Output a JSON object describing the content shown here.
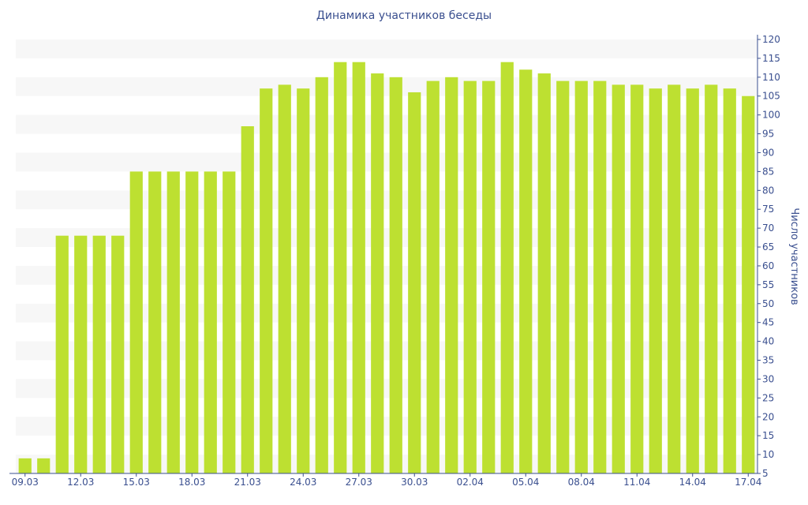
{
  "chart_data": {
    "type": "bar",
    "title": "Динамика участников беседы",
    "ylabel": "Число участников",
    "xlabel": "",
    "ylim": [
      5,
      120
    ],
    "y_ticks": [
      5,
      10,
      15,
      20,
      25,
      30,
      35,
      40,
      45,
      50,
      55,
      60,
      65,
      70,
      75,
      80,
      85,
      90,
      95,
      100,
      105,
      110,
      115,
      120
    ],
    "y_axis_side": "right",
    "grid": "alternating horizontal bands",
    "categories": [
      "09.03",
      "10.03",
      "11.03",
      "12.03",
      "13.03",
      "14.03",
      "15.03",
      "16.03",
      "17.03",
      "18.03",
      "19.03",
      "20.03",
      "21.03",
      "22.03",
      "23.03",
      "24.03",
      "25.03",
      "26.03",
      "27.03",
      "28.03",
      "29.03",
      "30.03",
      "31.03",
      "01.04",
      "02.04",
      "03.04",
      "04.04",
      "05.04",
      "06.04",
      "07.04",
      "08.04",
      "09.04",
      "10.04",
      "11.04",
      "12.04",
      "13.04",
      "14.04",
      "15.04",
      "16.04",
      "17.04"
    ],
    "x_tick_labels": [
      "09.03",
      "12.03",
      "15.03",
      "18.03",
      "21.03",
      "24.03",
      "27.03",
      "30.03",
      "02.04",
      "05.04",
      "08.04",
      "11.04",
      "14.04",
      "17.04"
    ],
    "values": [
      9,
      9,
      68,
      68,
      68,
      68,
      85,
      85,
      85,
      85,
      85,
      85,
      97,
      107,
      108,
      107,
      110,
      114,
      114,
      111,
      110,
      106,
      109,
      110,
      109,
      109,
      114,
      112,
      111,
      109,
      109,
      109,
      108,
      108,
      107,
      108,
      107,
      108,
      107,
      105
    ],
    "colors": {
      "bar": "#bde031",
      "band": "#f7f7f7",
      "axis": "#3a4f8f",
      "text": "#3a4f8f"
    }
  }
}
